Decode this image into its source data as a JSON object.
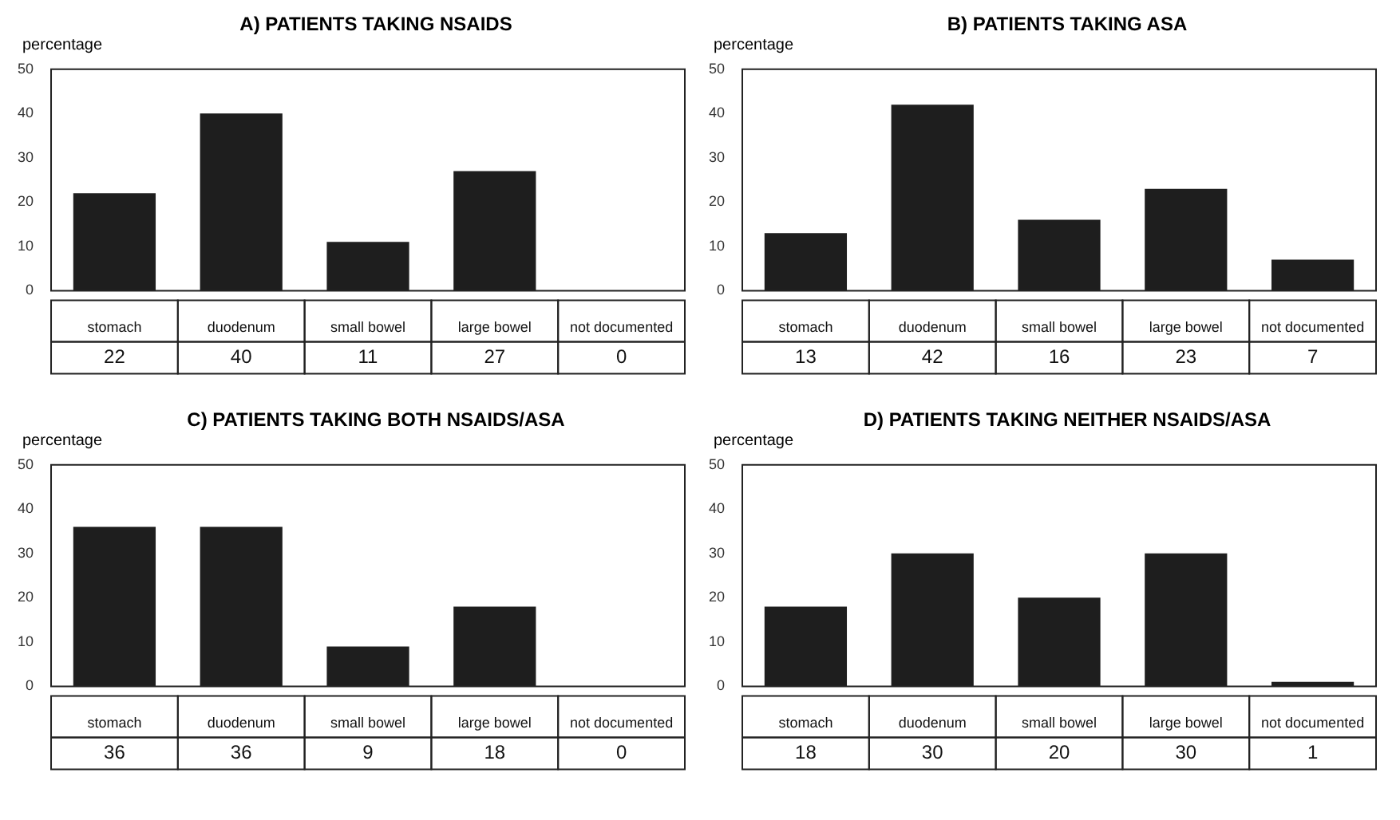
{
  "chart_data": [
    {
      "type": "bar",
      "title": "A) PATIENTS TAKING NSAIDS",
      "ylabel": "percentage",
      "categories": [
        "stomach",
        "duodenum",
        "small bowel",
        "large bowel",
        "not documented"
      ],
      "values": [
        22,
        40,
        11,
        27,
        0
      ],
      "color": "#1e1e1e",
      "ylim": [
        0,
        50
      ],
      "yticks": [
        0,
        10,
        20,
        30,
        40,
        50
      ],
      "grid": false,
      "data_labels": true
    },
    {
      "type": "bar",
      "title": "B) PATIENTS TAKING ASA",
      "ylabel": "percentage",
      "categories": [
        "stomach",
        "duodenum",
        "small bowel",
        "large bowel",
        "not documented"
      ],
      "values": [
        13,
        42,
        16,
        23,
        7
      ],
      "color": "#1e1e1e",
      "ylim": [
        0,
        50
      ],
      "yticks": [
        0,
        10,
        20,
        30,
        40,
        50
      ],
      "grid": false,
      "data_labels": true
    },
    {
      "type": "bar",
      "title": "C) PATIENTS TAKING BOTH NSAIDS/ASA",
      "ylabel": "percentage",
      "categories": [
        "stomach",
        "duodenum",
        "small bowel",
        "large bowel",
        "not documented"
      ],
      "values": [
        36,
        36,
        9,
        18,
        0
      ],
      "color": "#1e1e1e",
      "ylim": [
        0,
        50
      ],
      "yticks": [
        0,
        10,
        20,
        30,
        40,
        50
      ],
      "grid": false,
      "data_labels": true
    },
    {
      "type": "bar",
      "title": "D) PATIENTS TAKING NEITHER NSAIDS/ASA",
      "ylabel": "percentage",
      "categories": [
        "stomach",
        "duodenum",
        "small bowel",
        "large bowel",
        "not documented"
      ],
      "values": [
        18,
        30,
        20,
        30,
        1
      ],
      "color": "#1e1e1e",
      "ylim": [
        0,
        50
      ],
      "yticks": [
        0,
        10,
        20,
        30,
        40,
        50
      ],
      "grid": false,
      "data_labels": true
    }
  ]
}
